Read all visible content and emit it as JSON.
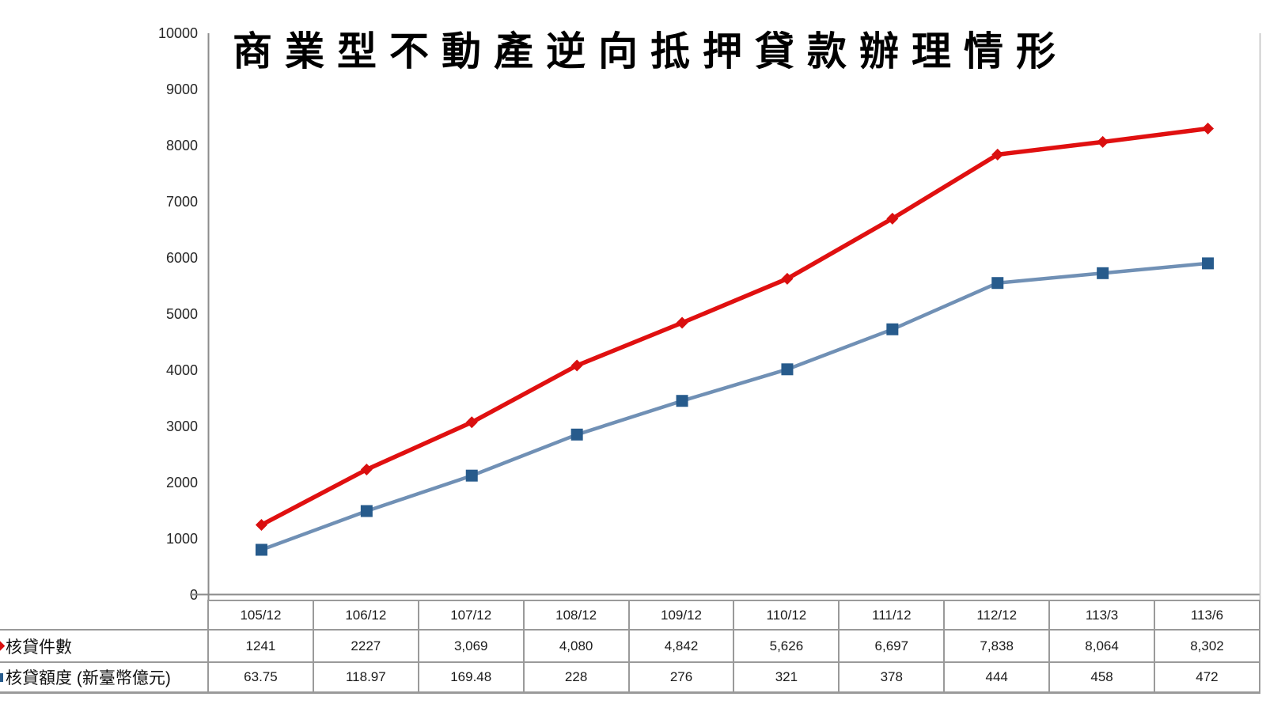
{
  "title": "商業型不動產逆向抵押貸款辦理情形",
  "chart_data": {
    "type": "line",
    "title": "商業型不動產逆向抵押貸款辦理情形",
    "categories": [
      "105/12",
      "106/12",
      "107/12",
      "108/12",
      "109/12",
      "110/12",
      "111/12",
      "112/12",
      "113/3",
      "113/6"
    ],
    "series": [
      {
        "name": "核貸件數",
        "values": [
          1241,
          2227,
          3069,
          4080,
          4842,
          5626,
          6697,
          7838,
          8064,
          8302
        ],
        "labels": [
          "1241",
          "2227",
          "3,069",
          "4,080",
          "4,842",
          "5,626",
          "6,697",
          "7,838",
          "8,064",
          "8,302"
        ],
        "color": "#e01010",
        "marker": "diamond",
        "marker_color": "#d90f0f",
        "axis": "primary"
      },
      {
        "name": "核貸額度 (新臺幣億元)",
        "values": [
          63.75,
          118.97,
          169.48,
          228,
          276,
          321,
          378,
          444,
          458,
          472
        ],
        "labels": [
          "63.75",
          "118.97",
          "169.48",
          "228",
          "276",
          "321",
          "378",
          "444",
          "458",
          "472"
        ],
        "color": "#7090b5",
        "marker": "square",
        "marker_color": "#275b8c",
        "axis": "secondary"
      }
    ],
    "y_axis": {
      "min": 0,
      "max": 10000,
      "step": 1000,
      "ticks": [
        "0",
        "1000",
        "2000",
        "3000",
        "4000",
        "5000",
        "6000",
        "7000",
        "8000",
        "9000",
        "10000"
      ]
    },
    "secondary_ylim": [
      0,
      800
    ],
    "gridlines": false,
    "legend_position": "table-left"
  }
}
